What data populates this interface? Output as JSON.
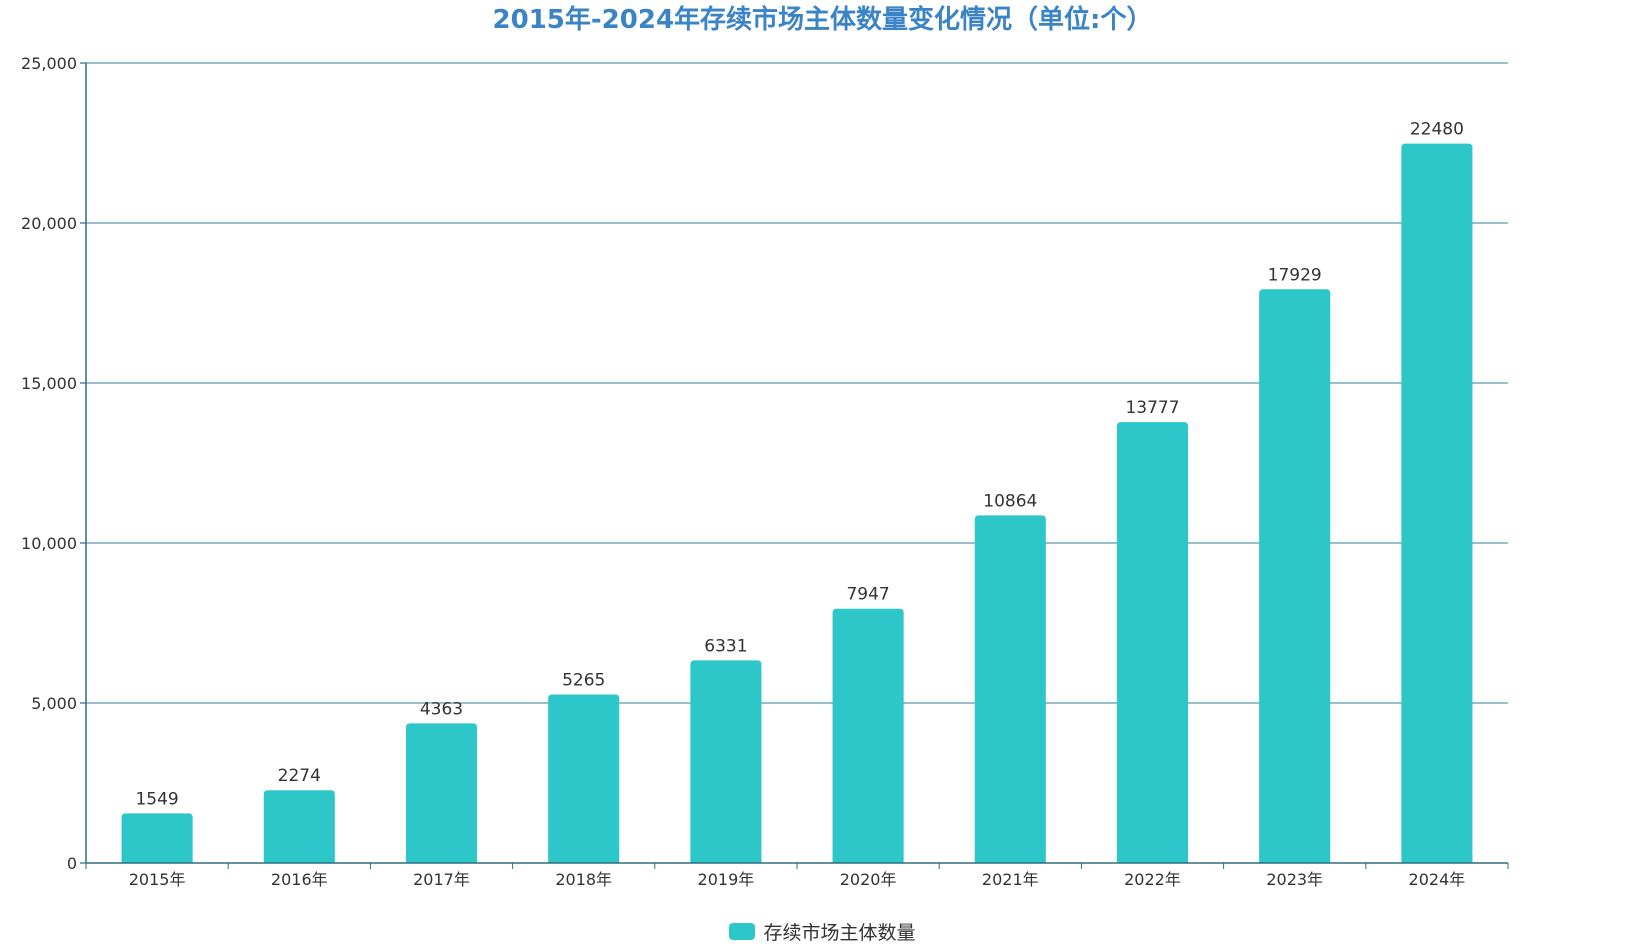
{
  "chart_data": {
    "type": "bar",
    "title": "2015年-2024年存续市场主体数量变化情况（单位:个）",
    "categories": [
      "2015年",
      "2016年",
      "2017年",
      "2018年",
      "2019年",
      "2020年",
      "2021年",
      "2022年",
      "2023年",
      "2024年"
    ],
    "series": [
      {
        "name": "存续市场主体数量",
        "values": [
          1549,
          2274,
          4363,
          5265,
          6331,
          7947,
          10864,
          13777,
          17929,
          22480
        ]
      }
    ],
    "ylim": [
      0,
      25000
    ],
    "yticks": [
      0,
      5000,
      10000,
      15000,
      20000,
      25000
    ],
    "ytick_labels": [
      "0",
      "5,000",
      "10,000",
      "15,000",
      "20,000",
      "25,000"
    ],
    "grid": true,
    "data_labels": true,
    "legend_position": "bottom-center",
    "colors": {
      "bar": "#2ec7c9",
      "title": "#3a83c6",
      "axis": "#2f6f7a",
      "grid": "#5a9aa6",
      "text": "#333333"
    }
  }
}
